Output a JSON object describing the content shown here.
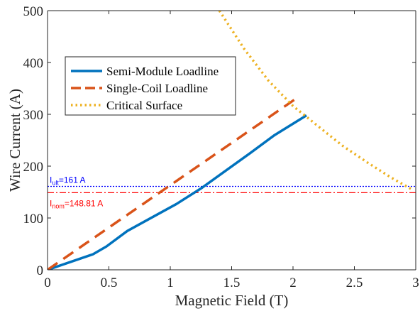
{
  "chart_data": {
    "type": "line",
    "xlabel": "Magnetic Field (T)",
    "ylabel": "Wire Current (A)",
    "xlim": [
      0,
      3
    ],
    "ylim": [
      0,
      500
    ],
    "x_ticks": [
      0,
      0.5,
      1,
      1.5,
      2,
      2.5,
      3
    ],
    "x_tick_labels": [
      "0",
      "0.5",
      "1",
      "1.5",
      "2",
      "2.5",
      "3"
    ],
    "y_ticks": [
      0,
      100,
      200,
      300,
      400,
      500
    ],
    "y_tick_labels": [
      "0",
      "100",
      "200",
      "300",
      "400",
      "500"
    ],
    "grid": false,
    "legend_position": "upper-left",
    "series": [
      {
        "name": "Semi-Module Loadline",
        "color": "#0072BD",
        "style": "solid",
        "x": [
          0,
          0.37,
          0.48,
          0.65,
          0.85,
          1.05,
          1.25,
          1.45,
          1.65,
          1.85,
          2.11
        ],
        "y": [
          0,
          30,
          45,
          75,
          101,
          127,
          157,
          191,
          225,
          260,
          298
        ]
      },
      {
        "name": "Single-Coil Loadline",
        "color": "#D95319",
        "style": "dashed",
        "x": [
          0,
          2.01
        ],
        "y": [
          0,
          328
        ]
      },
      {
        "name": "Critical Surface",
        "color": "#EDB120",
        "style": "dotted",
        "x": [
          1.4,
          1.6,
          1.8,
          2.0,
          2.2,
          2.4,
          2.6,
          2.8,
          2.97
        ],
        "y": [
          500,
          427,
          365,
          316,
          278,
          240,
          208,
          178,
          155
        ]
      }
    ],
    "reference_lines": [
      {
        "orientation": "horizontal",
        "y": 161,
        "color": "#0000FF",
        "style": "dotted",
        "label_main": "I",
        "label_sub": "ult",
        "label_rest": "=161 A"
      },
      {
        "orientation": "horizontal",
        "y": 148.81,
        "color": "#FF0000",
        "style": "dashdot",
        "label_main": "I",
        "label_sub": "nom",
        "label_rest": "=148.81 A"
      }
    ]
  }
}
